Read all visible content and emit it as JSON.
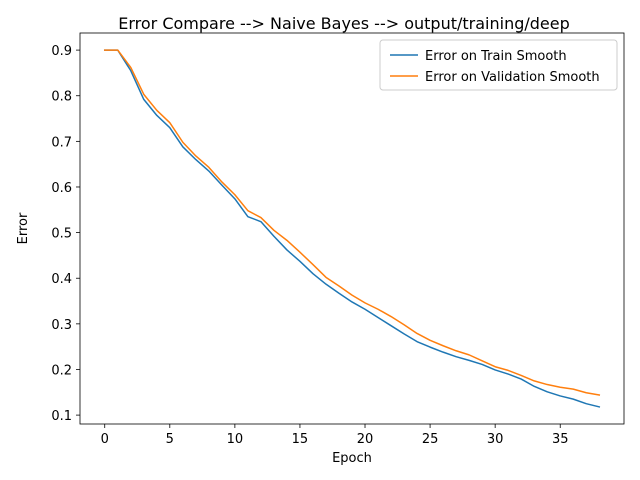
{
  "chart_data": {
    "type": "line",
    "title": "Error Compare --> Naive Bayes --> output/training/deep",
    "xlabel": "Epoch",
    "ylabel": "Error",
    "xlim": [
      -1.9,
      39.9
    ],
    "ylim": [
      0.0805,
      0.9375
    ],
    "xticks": [
      0,
      5,
      10,
      15,
      20,
      25,
      30,
      35
    ],
    "yticks": [
      0.1,
      0.2,
      0.3,
      0.4,
      0.5,
      0.6,
      0.7,
      0.8,
      0.9
    ],
    "grid": false,
    "legend_position": "top-right",
    "x": [
      0,
      1,
      2,
      3,
      4,
      5,
      6,
      7,
      8,
      9,
      10,
      11,
      12,
      13,
      14,
      15,
      16,
      17,
      18,
      19,
      20,
      21,
      22,
      23,
      24,
      25,
      26,
      27,
      28,
      29,
      30,
      31,
      32,
      33,
      34,
      35,
      36,
      37,
      38
    ],
    "series": [
      {
        "name": "Error on Train Smooth",
        "color": "#1f77b4",
        "values": [
          0.9,
          0.9,
          0.855,
          0.792,
          0.757,
          0.73,
          0.688,
          0.66,
          0.635,
          0.604,
          0.574,
          0.535,
          0.524,
          0.492,
          0.462,
          0.437,
          0.41,
          0.387,
          0.367,
          0.348,
          0.332,
          0.314,
          0.296,
          0.278,
          0.261,
          0.249,
          0.238,
          0.228,
          0.22,
          0.211,
          0.199,
          0.19,
          0.179,
          0.163,
          0.151,
          0.142,
          0.135,
          0.125,
          0.118
        ]
      },
      {
        "name": "Error on Validation Smooth",
        "color": "#ff7f0e",
        "values": [
          0.9,
          0.9,
          0.862,
          0.803,
          0.768,
          0.741,
          0.698,
          0.668,
          0.643,
          0.611,
          0.583,
          0.548,
          0.533,
          0.505,
          0.483,
          0.457,
          0.43,
          0.402,
          0.383,
          0.363,
          0.346,
          0.332,
          0.316,
          0.298,
          0.279,
          0.264,
          0.252,
          0.241,
          0.232,
          0.219,
          0.206,
          0.198,
          0.187,
          0.175,
          0.167,
          0.161,
          0.157,
          0.149,
          0.144
        ]
      }
    ]
  }
}
